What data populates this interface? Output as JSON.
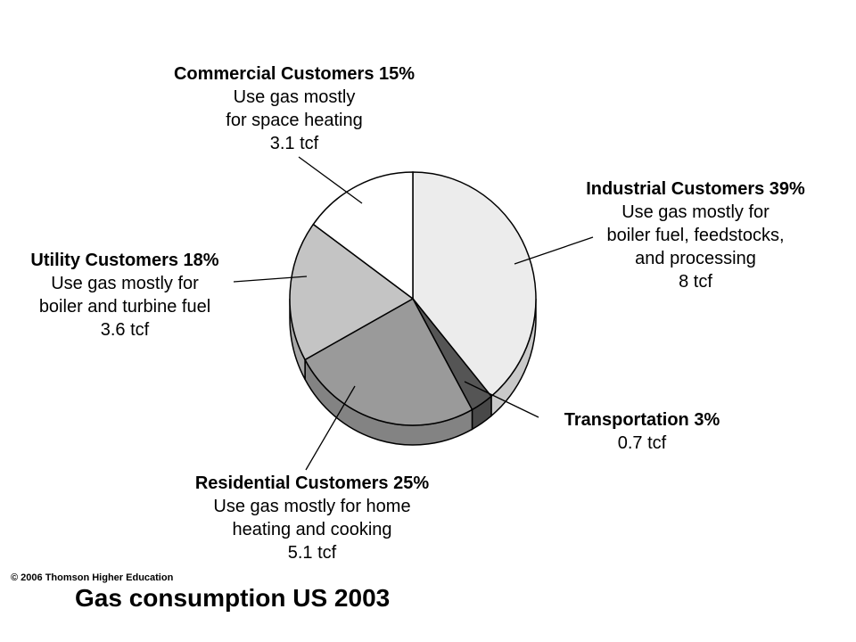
{
  "chart_data": {
    "type": "pie",
    "title": "Gas consumption US 2003",
    "unit": "tcf",
    "slices": [
      {
        "key": "industrial",
        "label": "Industrial Customers",
        "percent": 39,
        "value": 8,
        "color": "#ececec",
        "heading": "Industrial Customers 39%",
        "lines": [
          "Use gas mostly for",
          "boiler fuel, feedstocks,",
          "and processing",
          "8 tcf"
        ]
      },
      {
        "key": "transportation",
        "label": "Transportation",
        "percent": 3,
        "value": 0.7,
        "color": "#555555",
        "heading": "Transportation 3%",
        "lines": [
          "0.7 tcf"
        ]
      },
      {
        "key": "residential",
        "label": "Residential Customers",
        "percent": 25,
        "value": 5.1,
        "color": "#9a9a9a",
        "heading": "Residential Customers 25%",
        "lines": [
          "Use gas mostly for home",
          "heating and cooking",
          "5.1 tcf"
        ]
      },
      {
        "key": "utility",
        "label": "Utility Customers",
        "percent": 18,
        "value": 3.6,
        "color": "#c4c4c4",
        "heading": "Utility Customers 18%",
        "lines": [
          "Use gas mostly for",
          "boiler and turbine fuel",
          "3.6 tcf"
        ]
      },
      {
        "key": "commercial",
        "label": "Commercial Customers",
        "percent": 15,
        "value": 3.1,
        "color": "#ffffff",
        "heading": "Commercial Customers 15%",
        "lines": [
          "Use gas mostly",
          "for space heating",
          "3.1 tcf"
        ]
      }
    ]
  },
  "copyright": "© 2006 Thomson Higher Education",
  "caption": "Gas consumption US 2003"
}
